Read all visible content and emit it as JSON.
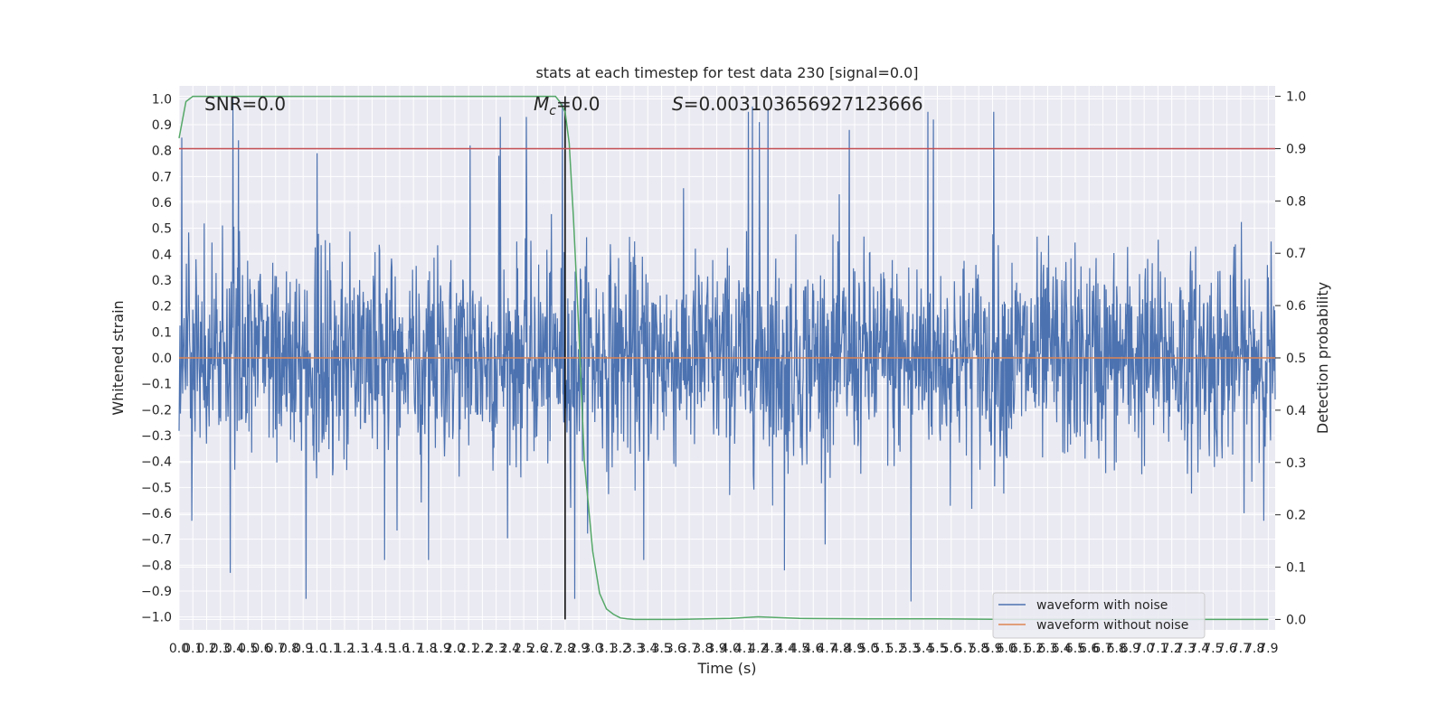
{
  "chart_data": {
    "type": "line",
    "title": "stats at each timestep for test data 230 [signal=0.0]",
    "xlabel": "Time (s)",
    "ylabel": "Whitened strain",
    "ylabel_right": "Detection probability",
    "xlim": [
      0,
      7.95
    ],
    "ylim": [
      -1.05,
      1.05
    ],
    "ylim_right": [
      -0.02,
      1.02
    ],
    "x_ticks": [
      0.0,
      0.1,
      0.2,
      0.3,
      0.4,
      0.5,
      0.6,
      0.7,
      0.8,
      0.9,
      1.0,
      1.1,
      1.2,
      1.3,
      1.4,
      1.5,
      1.6,
      1.7,
      1.8,
      1.9,
      2.0,
      2.1,
      2.2,
      2.3,
      2.4,
      2.5,
      2.6,
      2.7,
      2.8,
      2.9,
      3.0,
      3.1,
      3.2,
      3.3,
      3.4,
      3.5,
      3.6,
      3.7,
      3.8,
      3.9,
      4.0,
      4.1,
      4.2,
      4.3,
      4.4,
      4.5,
      4.6,
      4.7,
      4.8,
      4.9,
      5.0,
      5.1,
      5.2,
      5.3,
      5.4,
      5.5,
      5.6,
      5.7,
      5.8,
      5.9,
      6.0,
      6.1,
      6.2,
      6.3,
      6.4,
      6.5,
      6.6,
      6.7,
      6.8,
      6.9,
      7.0,
      7.1,
      7.2,
      7.3,
      7.4,
      7.5,
      7.6,
      7.7,
      7.8,
      7.9
    ],
    "y_ticks": [
      -1.0,
      -0.9,
      -0.8,
      -0.7,
      -0.6,
      -0.5,
      -0.4,
      -0.3,
      -0.2,
      -0.1,
      0.0,
      0.1,
      0.2,
      0.3,
      0.4,
      0.5,
      0.6,
      0.7,
      0.8,
      0.9,
      1.0
    ],
    "y_ticks_right": [
      0.0,
      0.1,
      0.2,
      0.3,
      0.4,
      0.5,
      0.6,
      0.7,
      0.8,
      0.9,
      1.0
    ],
    "grid": true,
    "legend_position": "lower-right",
    "annotations": {
      "snr": "SNR=0.0",
      "mc": "=0.0",
      "mc_symbol": "M",
      "mc_subscript": "c",
      "s": "=0.003103656927123666",
      "s_symbol": "S"
    },
    "threshold_right": 0.9,
    "marker_time": 2.8,
    "series": [
      {
        "name": "waveform with noise",
        "color": "#4c72b0",
        "axis": "left",
        "noise_sigma": 0.2,
        "spikes": [
          [
            0.02,
            0.85
          ],
          [
            0.39,
            1.0
          ],
          [
            0.43,
            0.84
          ],
          [
            0.92,
            -0.93
          ],
          [
            1.0,
            0.79
          ],
          [
            2.11,
            0.82
          ],
          [
            2.32,
            0.78
          ],
          [
            2.33,
            0.93
          ],
          [
            2.52,
            0.93
          ],
          [
            2.78,
            0.98
          ],
          [
            4.13,
            0.95
          ],
          [
            4.16,
            0.97
          ],
          [
            4.21,
            0.91
          ],
          [
            4.27,
            0.96
          ],
          [
            4.39,
            -0.82
          ],
          [
            4.86,
            0.88
          ],
          [
            5.31,
            -0.94
          ],
          [
            5.43,
            0.95
          ],
          [
            5.47,
            0.92
          ],
          [
            5.91,
            0.95
          ],
          [
            1.49,
            -0.78
          ],
          [
            0.37,
            -0.83
          ],
          [
            1.81,
            -0.78
          ],
          [
            2.87,
            -0.93
          ],
          [
            3.37,
            -0.78
          ]
        ]
      },
      {
        "name": "waveform without noise",
        "color": "#dd8452",
        "axis": "left",
        "x": [
          0.0,
          7.95
        ],
        "y": [
          0.0,
          0.0
        ]
      },
      {
        "name": "",
        "color": "#55a868",
        "axis": "right",
        "x": [
          0.0,
          0.05,
          0.1,
          0.2,
          0.5,
          1.0,
          1.5,
          2.0,
          2.5,
          2.6,
          2.7,
          2.73,
          2.76,
          2.8,
          2.83,
          2.86,
          2.9,
          2.94,
          3.0,
          3.05,
          3.1,
          3.15,
          3.2,
          3.25,
          3.3,
          3.4,
          3.6,
          4.0,
          4.2,
          4.5,
          5.0,
          5.5,
          6.0,
          7.0,
          7.9
        ],
        "y": [
          0.92,
          0.99,
          1.0,
          1.0,
          1.0,
          1.0,
          1.0,
          1.0,
          1.0,
          1.0,
          1.0,
          1.0,
          0.99,
          0.97,
          0.91,
          0.77,
          0.55,
          0.3,
          0.13,
          0.05,
          0.02,
          0.01,
          0.003,
          0.001,
          0.0,
          0.0,
          0.0,
          0.002,
          0.005,
          0.002,
          0.001,
          0.001,
          0.0,
          0.0,
          0.0
        ]
      },
      {
        "name": "",
        "color": "#c44e52",
        "axis": "right",
        "x": [
          0.0,
          7.95
        ],
        "y": [
          0.9,
          0.9
        ]
      }
    ]
  }
}
